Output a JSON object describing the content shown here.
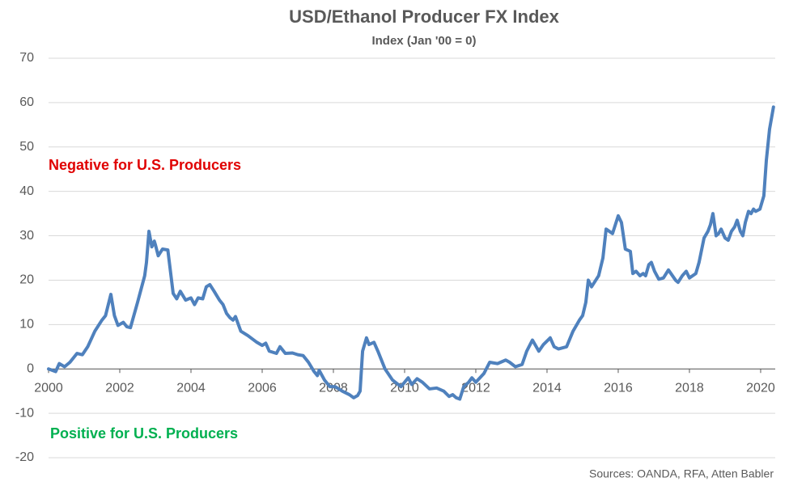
{
  "chart_data": {
    "type": "line",
    "title": "USD/Ethanol Producer FX Index",
    "subtitle": "Index (Jan '00 = 0)",
    "annotations": [
      {
        "text": "Negative for U.S. Producers",
        "color": "#e00000"
      },
      {
        "text": "Positive for U.S. Producers",
        "color": "#00b050"
      }
    ],
    "source": "Sources: OANDA, RFA, Atten Babler",
    "xlim": [
      2000,
      2020.41
    ],
    "xticks": [
      2000,
      2002,
      2004,
      2006,
      2008,
      2010,
      2012,
      2014,
      2016,
      2018,
      2020
    ],
    "ylim": [
      -20,
      70
    ],
    "yticks": [
      -20,
      -10,
      0,
      10,
      20,
      30,
      40,
      50,
      60,
      70
    ],
    "grid": true,
    "series": [
      {
        "name": "USD/Ethanol Producer FX Index",
        "color": "#4f81bd",
        "x": [
          2000.0,
          2000.2,
          2000.3,
          2000.45,
          2000.6,
          2000.8,
          2000.95,
          2001.1,
          2001.3,
          2001.5,
          2001.6,
          2001.75,
          2001.85,
          2001.95,
          2002.1,
          2002.2,
          2002.3,
          2002.5,
          2002.6,
          2002.7,
          2002.75,
          2002.82,
          2002.9,
          2002.97,
          2003.0,
          2003.08,
          2003.2,
          2003.35,
          2003.5,
          2003.6,
          2003.7,
          2003.85,
          2004.0,
          2004.1,
          2004.2,
          2004.33,
          2004.43,
          2004.53,
          2004.65,
          2004.8,
          2004.9,
          2005.0,
          2005.1,
          2005.18,
          2005.25,
          2005.4,
          2005.6,
          2005.85,
          2006.0,
          2006.1,
          2006.2,
          2006.4,
          2006.5,
          2006.65,
          2006.85,
          2007.0,
          2007.15,
          2007.3,
          2007.45,
          2007.55,
          2007.6,
          2007.75,
          2007.9,
          2008.05,
          2008.25,
          2008.45,
          2008.57,
          2008.68,
          2008.75,
          2008.82,
          2008.93,
          2009.0,
          2009.14,
          2009.25,
          2009.45,
          2009.66,
          2009.9,
          2010.1,
          2010.2,
          2010.35,
          2010.5,
          2010.7,
          2010.9,
          2011.1,
          2011.25,
          2011.35,
          2011.45,
          2011.55,
          2011.66,
          2011.8,
          2011.89,
          2012.0,
          2012.23,
          2012.39,
          2012.61,
          2012.84,
          2012.95,
          2013.11,
          2013.3,
          2013.43,
          2013.59,
          2013.77,
          2013.9,
          2014.09,
          2014.2,
          2014.32,
          2014.55,
          2014.73,
          2014.91,
          2015.0,
          2015.09,
          2015.16,
          2015.25,
          2015.45,
          2015.57,
          2015.66,
          2015.84,
          2016.0,
          2016.09,
          2016.2,
          2016.34,
          2016.41,
          2016.5,
          2016.61,
          2016.7,
          2016.77,
          2016.86,
          2016.93,
          2017.02,
          2017.14,
          2017.27,
          2017.41,
          2017.61,
          2017.68,
          2017.8,
          2017.91,
          2018.0,
          2018.18,
          2018.27,
          2018.41,
          2018.52,
          2018.59,
          2018.66,
          2018.75,
          2018.82,
          2018.89,
          2019.0,
          2019.09,
          2019.18,
          2019.27,
          2019.34,
          2019.43,
          2019.5,
          2019.57,
          2019.66,
          2019.73,
          2019.8,
          2019.86,
          2019.98,
          2020.09,
          2020.16,
          2020.25,
          2020.36
        ],
        "values": [
          0,
          -0.6,
          1.2,
          0.5,
          1.5,
          3.5,
          3.2,
          5,
          8.5,
          11,
          12,
          16.8,
          12,
          9.8,
          10.5,
          9.5,
          9.3,
          15,
          18,
          21,
          24,
          31,
          27.5,
          28.8,
          28,
          25.5,
          27,
          26.8,
          17,
          15.8,
          17.5,
          15.5,
          16,
          14.5,
          16,
          15.8,
          18.5,
          19,
          17.5,
          15.5,
          14.5,
          12.5,
          11.5,
          11,
          11.8,
          8.5,
          7.5,
          6,
          5.3,
          5.8,
          4,
          3.5,
          5,
          3.5,
          3.6,
          3.2,
          3,
          1.5,
          -0.5,
          -1.5,
          -0.3,
          -2.5,
          -4,
          -4,
          -5,
          -5.8,
          -6.5,
          -6,
          -5,
          4,
          7,
          5.5,
          6,
          4,
          0,
          -2.5,
          -4,
          -2,
          -3.5,
          -2.2,
          -3,
          -4.5,
          -4.3,
          -5,
          -6.2,
          -5.8,
          -6.5,
          -6.8,
          -4,
          -3,
          -2,
          -3,
          -1,
          1.5,
          1.2,
          2,
          1.5,
          0.5,
          1,
          4,
          6.5,
          4,
          5.5,
          7,
          5,
          4.5,
          5,
          8.5,
          11,
          12,
          15,
          20,
          18.5,
          21,
          25,
          31.5,
          30.5,
          34.5,
          33,
          27,
          26.5,
          21.5,
          22,
          21,
          21.5,
          21,
          23.5,
          24,
          22,
          20.2,
          20.5,
          22.3,
          20,
          19.5,
          21,
          22,
          20.5,
          21.5,
          24,
          29.5,
          31,
          32.5,
          35,
          30,
          30.5,
          31.5,
          29.5,
          29,
          31,
          32,
          33.5,
          31,
          30,
          33,
          35.5,
          35,
          36,
          35.5,
          36,
          39,
          47,
          54,
          59
        ]
      }
    ]
  }
}
